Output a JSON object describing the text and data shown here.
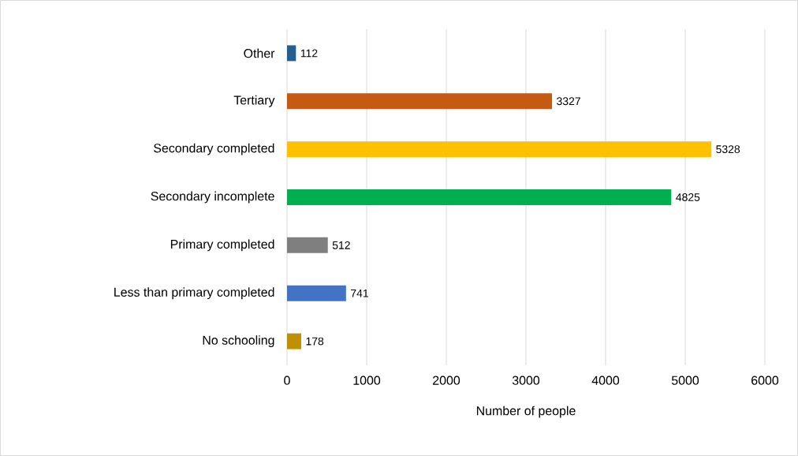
{
  "chart_data": {
    "type": "bar",
    "orientation": "horizontal",
    "xlabel": "Number of people",
    "categories": [
      "Other",
      "Tertiary",
      "Secondary completed",
      "Secondary incomplete",
      "Primary completed",
      "Less than primary completed",
      "No schooling"
    ],
    "values": [
      112,
      3327,
      5328,
      4825,
      512,
      741,
      178
    ],
    "colors": [
      "#255e91",
      "#c55a11",
      "#ffc000",
      "#00b050",
      "#7f7f7f",
      "#4472c4",
      "#bf9000"
    ],
    "xlim": [
      0,
      6000
    ],
    "xticks": [
      0,
      1000,
      2000,
      3000,
      4000,
      5000,
      6000
    ],
    "grid": "x",
    "data_labels": true
  }
}
